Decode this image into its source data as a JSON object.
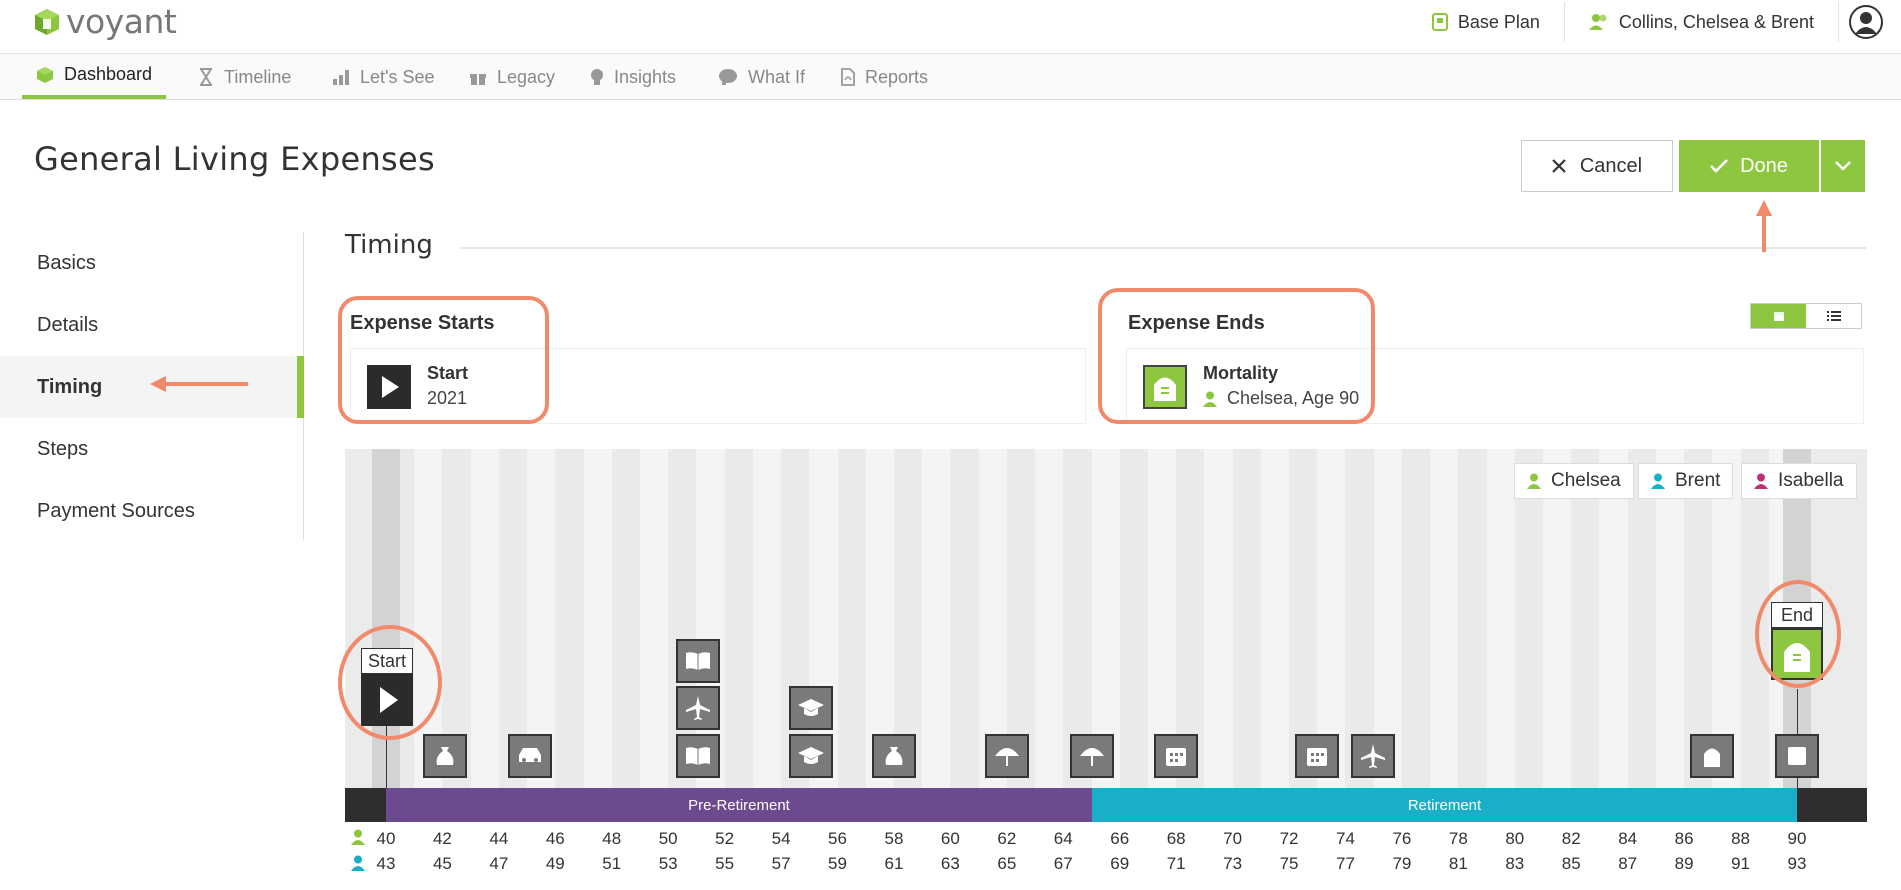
{
  "app": {
    "logo_text": "voyant"
  },
  "header": {
    "plan_label": "Base Plan",
    "client_label": "Collins, Chelsea & Brent"
  },
  "nav": {
    "tabs": [
      {
        "label": "Dashboard",
        "icon": "cube-icon",
        "active": true
      },
      {
        "label": "Timeline",
        "icon": "hourglass-icon"
      },
      {
        "label": "Let's See",
        "icon": "bar-chart-icon"
      },
      {
        "label": "Legacy",
        "icon": "gift-icon"
      },
      {
        "label": "Insights",
        "icon": "lightbulb-icon"
      },
      {
        "label": "What If",
        "icon": "brain-icon"
      },
      {
        "label": "Reports",
        "icon": "pdf-icon"
      }
    ]
  },
  "page": {
    "title": "General Living Expenses",
    "cancel_label": "Cancel",
    "done_label": "Done"
  },
  "sidebar": {
    "items": [
      {
        "label": "Basics"
      },
      {
        "label": "Details"
      },
      {
        "label": "Timing",
        "active": true
      },
      {
        "label": "Steps"
      },
      {
        "label": "Payment Sources"
      }
    ]
  },
  "timing": {
    "section_title": "Timing",
    "starts": {
      "heading": "Expense Starts",
      "name": "Start",
      "detail": "2021"
    },
    "ends": {
      "heading": "Expense Ends",
      "name": "Mortality",
      "detail": "Chelsea, Age 90"
    }
  },
  "timeline": {
    "legend": [
      "Chelsea",
      "Brent",
      "Isabella"
    ],
    "start_flag": "Start",
    "end_flag": "End",
    "phases": {
      "pre_retirement": "Pre-Retirement",
      "retirement": "Retirement"
    },
    "ages_chelsea": [
      "40",
      "42",
      "44",
      "46",
      "48",
      "50",
      "52",
      "54",
      "56",
      "58",
      "60",
      "62",
      "64",
      "66",
      "68",
      "70",
      "72",
      "74",
      "76",
      "78",
      "80",
      "82",
      "84",
      "86",
      "88",
      "90"
    ],
    "ages_brent": [
      "43",
      "45",
      "47",
      "49",
      "51",
      "53",
      "55",
      "57",
      "59",
      "61",
      "63",
      "65",
      "67",
      "69",
      "71",
      "73",
      "75",
      "77",
      "79",
      "81",
      "83",
      "85",
      "87",
      "89",
      "91",
      "93"
    ]
  },
  "colors": {
    "accent": "#8dc63f",
    "pre_retirement": "#6c4a8e",
    "retirement": "#1aafc8",
    "chelsea": "#8dc63f",
    "brent": "#1aafc8",
    "isabella": "#c0317a",
    "annotation": "#f08a6b"
  }
}
